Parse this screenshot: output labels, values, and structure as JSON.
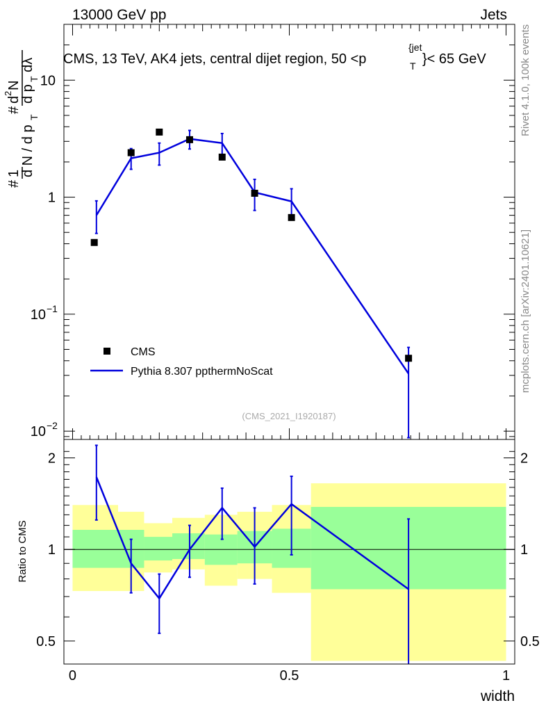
{
  "header": {
    "left_label": "13000 GeV pp",
    "right_label": "Jets"
  },
  "chart_data": [
    {
      "type": "scatter",
      "panel": "main",
      "title": "CMS, 13 TeV, AK4 jets, central dijet region, 50 <p",
      "title_sup": "{jet",
      "title_sub": "T",
      "title_end": "}< 65 GeV",
      "ylabel": "1/dN/dpT # d2N/dpT dλ",
      "xlabel": "width",
      "xlim": [
        -0.02,
        1.02
      ],
      "ylim": [
        0.0085,
        30
      ],
      "yscale": "log",
      "yticks": [
        {
          "value": 0.01,
          "label": "10",
          "sup": "−2"
        },
        {
          "value": 0.1,
          "label": "10",
          "sup": "−1"
        },
        {
          "value": 1,
          "label": "1",
          "sup": ""
        },
        {
          "value": 10,
          "label": "10",
          "sup": ""
        }
      ],
      "legend_position": "lower-left",
      "series": [
        {
          "name": "CMS",
          "style": "markers",
          "color": "#000000",
          "x": [
            0.05,
            0.135,
            0.2,
            0.27,
            0.345,
            0.42,
            0.505,
            0.775
          ],
          "y": [
            0.41,
            2.4,
            3.6,
            3.1,
            2.2,
            1.08,
            0.67,
            0.042
          ]
        },
        {
          "name": "Pythia 8.307 ppthermNoScat",
          "style": "line",
          "color": "#0000dd",
          "x": [
            0.055,
            0.135,
            0.2,
            0.27,
            0.345,
            0.42,
            0.505,
            0.775
          ],
          "y": [
            0.7,
            2.15,
            2.4,
            3.15,
            2.9,
            1.1,
            0.92,
            0.031
          ],
          "err_low": [
            0.49,
            1.73,
            1.88,
            2.58,
            2.29,
            0.77,
            0.64,
            0.0088
          ],
          "err_high": [
            0.93,
            2.6,
            2.9,
            3.72,
            3.5,
            1.42,
            1.18,
            0.052
          ]
        }
      ],
      "watermark": "(CMS_2021_I1920187)",
      "side_label_top": "Rivet 4.1.0,  100k events",
      "side_label_bottom": "mcplots.cern.ch [arXiv:2401.10621]"
    },
    {
      "type": "line",
      "panel": "ratio",
      "ylabel": "Ratio to CMS",
      "xlabel": "width",
      "xlim": [
        -0.02,
        1.02
      ],
      "ylim": [
        0.42,
        2.3
      ],
      "yscale": "log",
      "xticks": [
        {
          "value": 0,
          "label": "0"
        },
        {
          "value": 0.5,
          "label": "0.5"
        },
        {
          "value": 1,
          "label": "1"
        }
      ],
      "yticks": [
        {
          "value": 0.5,
          "label": "0.5"
        },
        {
          "value": 1,
          "label": "1"
        },
        {
          "value": 2,
          "label": "2"
        }
      ],
      "bands": [
        {
          "x0": 0.0,
          "x1": 0.105,
          "y_yellow": [
            0.73,
            1.4
          ],
          "y_green": [
            0.87,
            1.16
          ]
        },
        {
          "x0": 0.105,
          "x1": 0.165,
          "y_yellow": [
            0.73,
            1.33
          ],
          "y_green": [
            0.87,
            1.16
          ]
        },
        {
          "x0": 0.165,
          "x1": 0.23,
          "y_yellow": [
            0.84,
            1.22
          ],
          "y_green": [
            0.92,
            1.1
          ]
        },
        {
          "x0": 0.23,
          "x1": 0.305,
          "y_yellow": [
            0.86,
            1.27
          ],
          "y_green": [
            0.93,
            1.13
          ]
        },
        {
          "x0": 0.305,
          "x1": 0.38,
          "y_yellow": [
            0.76,
            1.3
          ],
          "y_green": [
            0.89,
            1.12
          ]
        },
        {
          "x0": 0.38,
          "x1": 0.46,
          "y_yellow": [
            0.8,
            1.33
          ],
          "y_green": [
            0.9,
            1.15
          ]
        },
        {
          "x0": 0.46,
          "x1": 0.55,
          "y_yellow": [
            0.72,
            1.4
          ],
          "y_green": [
            0.87,
            1.17
          ]
        },
        {
          "x0": 0.55,
          "x1": 1.0,
          "y_yellow": [
            0.43,
            1.65
          ],
          "y_green": [
            0.74,
            1.38
          ]
        }
      ],
      "band_colors": {
        "yellow": "#ffff99",
        "green": "#99ff99"
      },
      "series": [
        {
          "name": "Pythia 8.307 ppthermNoScat",
          "color": "#0000dd",
          "x": [
            0.055,
            0.135,
            0.2,
            0.27,
            0.345,
            0.42,
            0.505,
            0.775
          ],
          "y": [
            1.73,
            0.9,
            0.69,
            1.0,
            1.37,
            1.02,
            1.41,
            0.74
          ],
          "err_low": [
            1.25,
            0.72,
            0.53,
            0.81,
            1.08,
            0.77,
            0.96,
            0.42
          ],
          "err_high": [
            2.2,
            1.08,
            0.83,
            1.2,
            1.59,
            1.37,
            1.74,
            1.26
          ]
        }
      ]
    }
  ]
}
